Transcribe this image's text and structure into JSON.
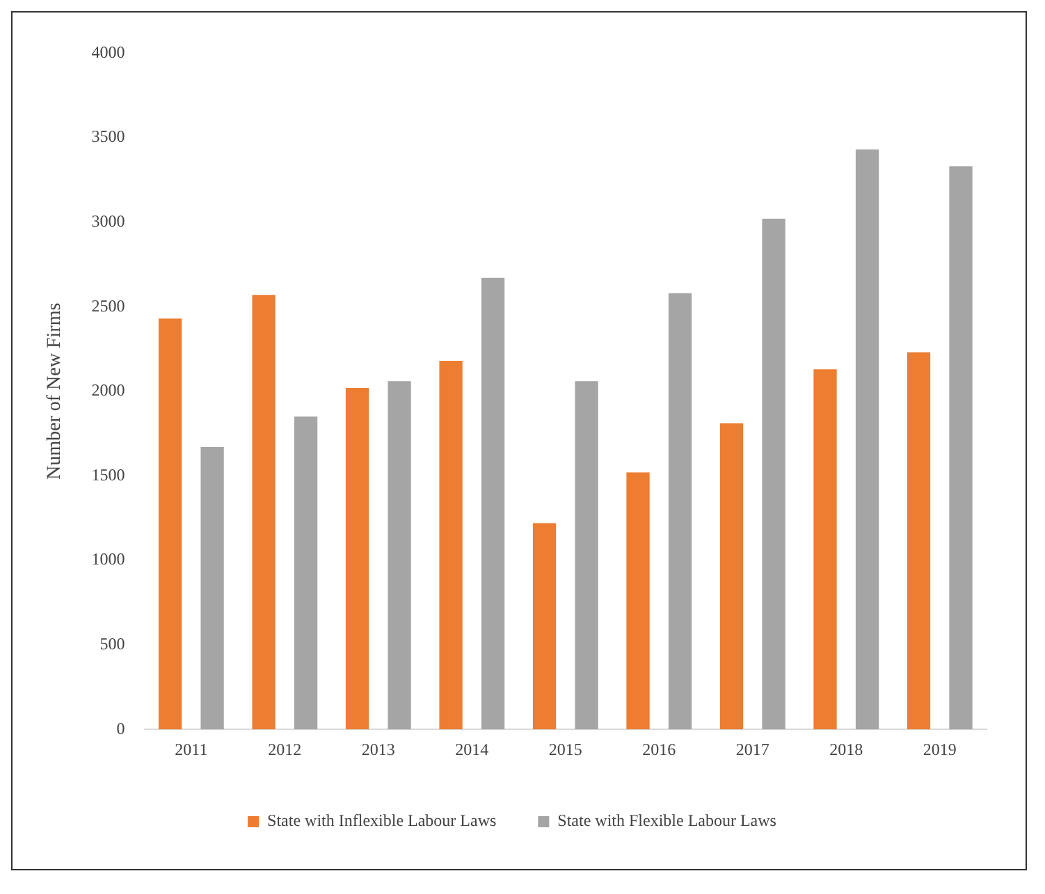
{
  "chart_data": {
    "type": "bar",
    "ylabel": "Number of New Firms",
    "categories": [
      "2011",
      "2012",
      "2013",
      "2014",
      "2015",
      "2016",
      "2017",
      "2018",
      "2019"
    ],
    "series": [
      {
        "name": "State with Inflexible Labour Laws",
        "color": "#ed7d31",
        "values": [
          2430,
          2570,
          2020,
          2180,
          1220,
          1520,
          1810,
          2130,
          2230
        ]
      },
      {
        "name": "State with Flexible Labour Laws",
        "color": "#a5a5a5",
        "values": [
          1670,
          1850,
          2060,
          2670,
          2060,
          2580,
          3020,
          3430,
          3330
        ]
      }
    ],
    "ylim": [
      0,
      4000
    ],
    "yticks": [
      0,
      500,
      1000,
      1500,
      2000,
      2500,
      3000,
      3500,
      4000
    ],
    "grid": false,
    "legend": "bottom"
  }
}
